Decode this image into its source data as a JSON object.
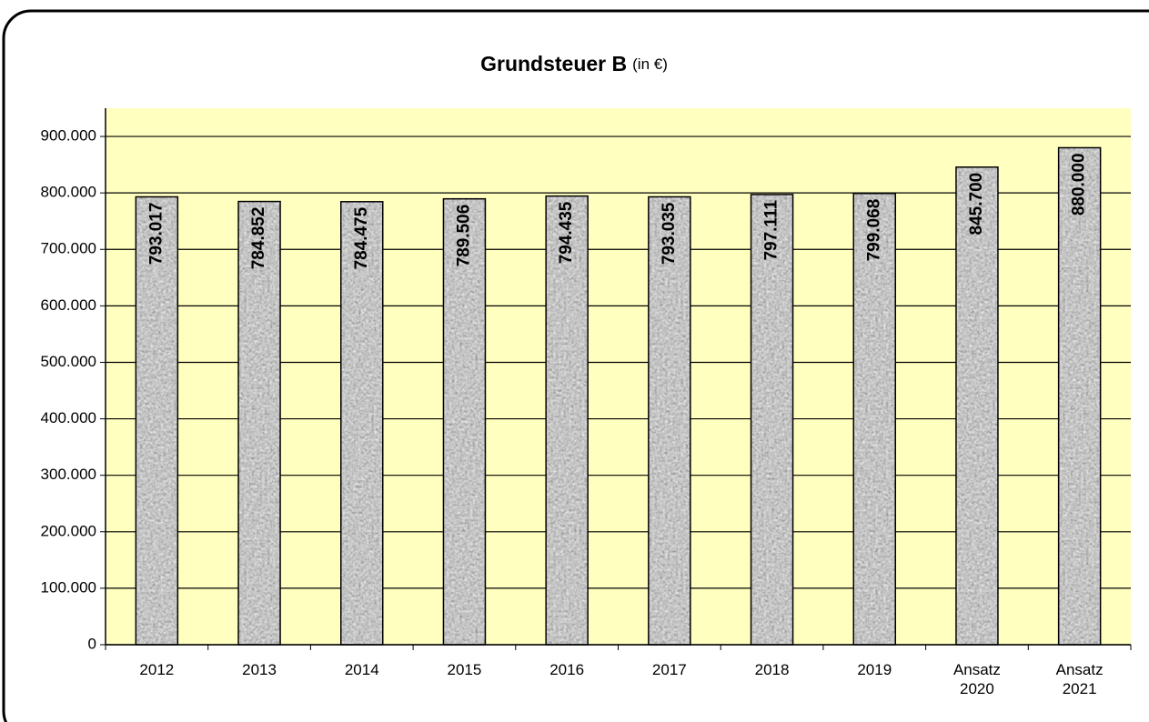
{
  "chart_data": {
    "type": "bar",
    "title": "Grundsteuer B",
    "title_unit": "(in €)",
    "categories": [
      "2012",
      "2013",
      "2014",
      "2015",
      "2016",
      "2017",
      "2018",
      "2019",
      "Ansatz 2020",
      "Ansatz 2021"
    ],
    "values": [
      793017,
      784852,
      784475,
      789506,
      794435,
      793035,
      797111,
      799068,
      845700,
      880000
    ],
    "value_labels": [
      "793.017",
      "784.852",
      "784.475",
      "789.506",
      "794.435",
      "793.035",
      "797.111",
      "799.068",
      "845.700",
      "880.000"
    ],
    "color": "#9a9a9a",
    "ylim": [
      0,
      950000
    ],
    "yticks": [
      0,
      {
        "value": 100000,
        "label": "100.000"
      },
      {
        "value": 200000,
        "label": "200.000"
      },
      {
        "value": 300000,
        "label": "300.000"
      },
      {
        "value": 400000,
        "label": "400.000"
      },
      {
        "value": 500000,
        "label": "500.000"
      },
      {
        "value": 600000,
        "label": "600.000"
      },
      {
        "value": 700000,
        "label": "700.000"
      },
      {
        "value": 800000,
        "label": "800.000"
      },
      {
        "value": 900000,
        "label": "900.000"
      }
    ],
    "grid": true
  }
}
